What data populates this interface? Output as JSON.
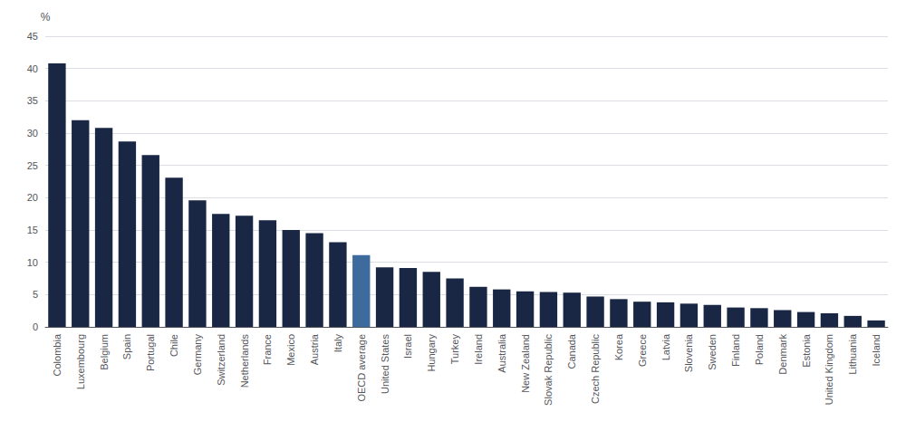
{
  "chart_data": {
    "type": "bar",
    "categories": [
      "Colombia",
      "Luxembourg",
      "Belgium",
      "Spain",
      "Portugal",
      "Chile",
      "Germany",
      "Switzerland",
      "Netherlands",
      "France",
      "Mexico",
      "Austria",
      "Italy",
      "OECD average",
      "United States",
      "Israel",
      "Hungary",
      "Turkey",
      "Ireland",
      "Australia",
      "New Zealand",
      "Slovak Republic",
      "Canada",
      "Czech Republic",
      "Korea",
      "Greece",
      "Latvia",
      "Slovenia",
      "Sweden",
      "Finland",
      "Poland",
      "Denmark",
      "Estonia",
      "United Kingdom",
      "Lithuania",
      "Iceland"
    ],
    "values": [
      40.8,
      32.0,
      30.8,
      28.7,
      26.6,
      23.1,
      19.6,
      17.5,
      17.2,
      16.5,
      15.0,
      14.5,
      13.1,
      11.1,
      9.2,
      9.1,
      8.5,
      7.5,
      6.2,
      5.8,
      5.5,
      5.4,
      5.3,
      4.7,
      4.3,
      3.9,
      3.8,
      3.6,
      3.4,
      3.0,
      2.9,
      2.6,
      2.3,
      2.1,
      1.7,
      1.0
    ],
    "colors": [
      "#1a2744",
      "#1a2744",
      "#1a2744",
      "#1a2744",
      "#1a2744",
      "#1a2744",
      "#1a2744",
      "#1a2744",
      "#1a2744",
      "#1a2744",
      "#1a2744",
      "#1a2744",
      "#1a2744",
      "#3d6b9e",
      "#1a2744",
      "#1a2744",
      "#1a2744",
      "#1a2744",
      "#1a2744",
      "#1a2744",
      "#1a2744",
      "#1a2744",
      "#1a2744",
      "#1a2744",
      "#1a2744",
      "#1a2744",
      "#1a2744",
      "#1a2744",
      "#1a2744",
      "#1a2744",
      "#1a2744",
      "#1a2744",
      "#1a2744",
      "#1a2744",
      "#1a2744",
      "#1a2744"
    ],
    "ylabel": "%",
    "ylim": [
      0,
      45
    ],
    "yticks": [
      0,
      5,
      10,
      15,
      20,
      25,
      30,
      35,
      40,
      45
    ],
    "grid": true
  }
}
